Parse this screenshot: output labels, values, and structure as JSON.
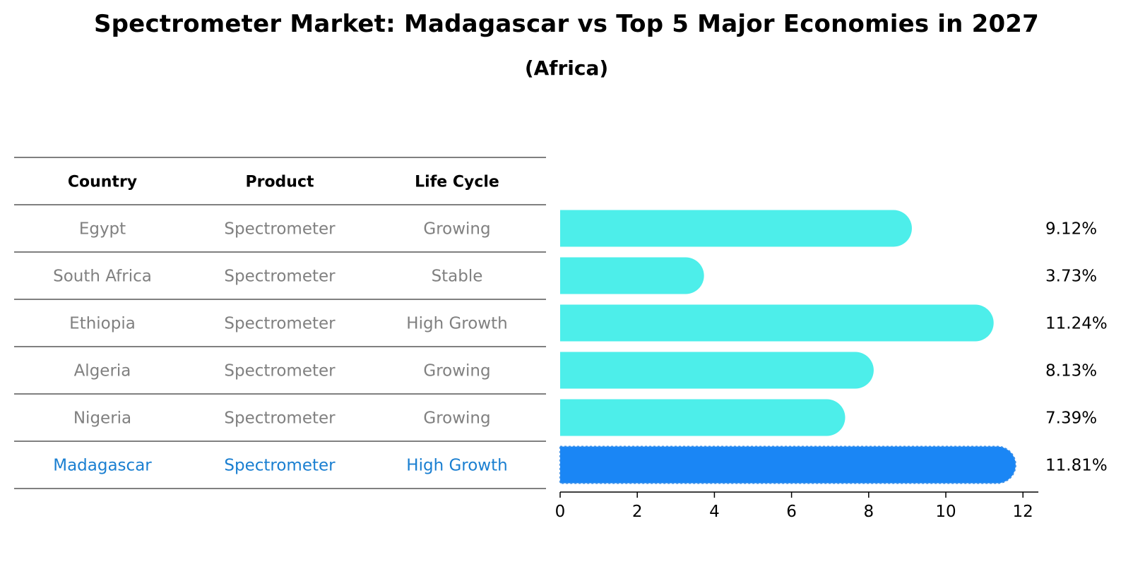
{
  "chart_data": {
    "type": "bar",
    "orientation": "horizontal",
    "title": "Spectrometer Market: Madagascar vs Top 5 Major Economies in 2027",
    "subtitle": "(Africa)",
    "table": {
      "headers": [
        "Country",
        "Product",
        "Life Cycle"
      ],
      "rows": [
        [
          "Egypt",
          "Spectrometer",
          "Growing"
        ],
        [
          "South Africa",
          "Spectrometer",
          "Stable"
        ],
        [
          "Ethiopia",
          "Spectrometer",
          "High Growth"
        ],
        [
          "Algeria",
          "Spectrometer",
          "Growing"
        ],
        [
          "Nigeria",
          "Spectrometer",
          "Growing"
        ],
        [
          "Madagascar",
          "Spectrometer",
          "High Growth"
        ]
      ],
      "highlight_row": 5
    },
    "categories": [
      "Egypt",
      "South Africa",
      "Ethiopia",
      "Algeria",
      "Nigeria",
      "Madagascar"
    ],
    "values": [
      9.12,
      3.73,
      11.24,
      8.13,
      7.39,
      11.81
    ],
    "value_labels": [
      "9.12%",
      "3.73%",
      "11.24%",
      "8.13%",
      "7.39%",
      "11.81%"
    ],
    "xlim": [
      0,
      12.4
    ],
    "xticks": [
      0,
      2,
      4,
      6,
      8,
      10,
      12
    ],
    "xlabel": "",
    "ylabel": "",
    "colors": {
      "bar": "#4DEEEA",
      "highlight_bar": "#1A86F5",
      "muted_text": "#808080",
      "highlight_text": "#1A7FD1",
      "line": "#000000"
    }
  }
}
